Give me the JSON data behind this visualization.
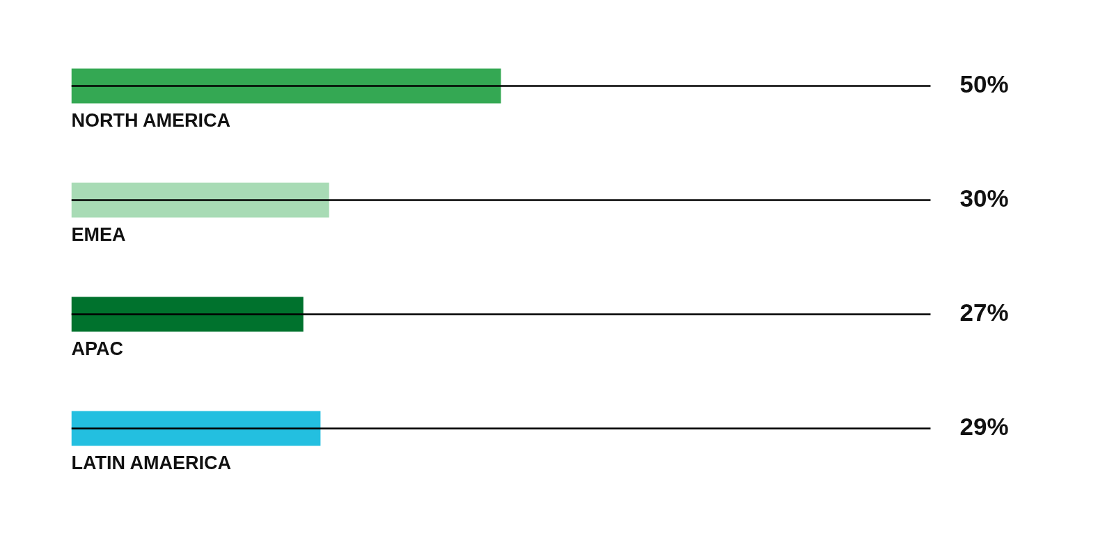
{
  "chart_data": {
    "type": "bar",
    "orientation": "horizontal",
    "categories": [
      "NORTH AMERICA",
      "EMEA",
      "APAC",
      "LATIN AMAERICA"
    ],
    "values": [
      50,
      30,
      27,
      29
    ],
    "colors": [
      "#34a853",
      "#a8dbb5",
      "#00722d",
      "#23bfe0"
    ],
    "value_labels": [
      "50%",
      "30%",
      "27%",
      "29%"
    ],
    "xlim": [
      0,
      100
    ],
    "grid": "y",
    "tick_labels": "y"
  }
}
